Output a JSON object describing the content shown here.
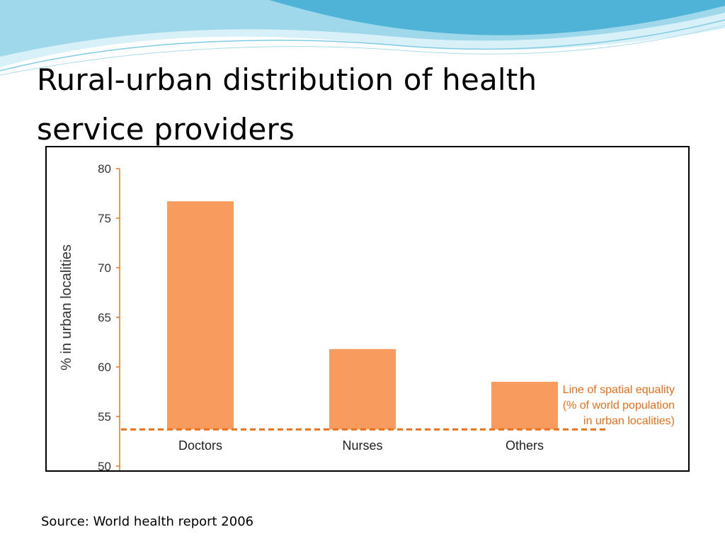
{
  "slide": {
    "title_line1": "Rural-urban distribution of health",
    "title_line2": "service providers",
    "source": "Source: World health report 2006"
  },
  "colors": {
    "bar": "#F79B5E",
    "axis": "#E8781E",
    "equality_line": "#E8701A",
    "annotation_text": "#E8701A",
    "wave_light": "#BFE6F2",
    "wave_mid": "#7FCBE3",
    "wave_dark": "#3AA6CF"
  },
  "chart_data": {
    "type": "bar",
    "categories": [
      "Doctors",
      "Nurses",
      "Others"
    ],
    "values": [
      76.7,
      61.8,
      58.5
    ],
    "title": "",
    "xlabel": "",
    "ylabel": "% in urban localities",
    "ylim": [
      50,
      80
    ],
    "yticks": [
      50,
      55,
      60,
      65,
      70,
      75,
      80
    ],
    "reference_line": {
      "value": 53.7,
      "style": "dashed",
      "label_lines": [
        "Line of spatial equality",
        "(% of world population",
        "in urban localities)"
      ]
    },
    "grid": false,
    "legend": "none"
  }
}
